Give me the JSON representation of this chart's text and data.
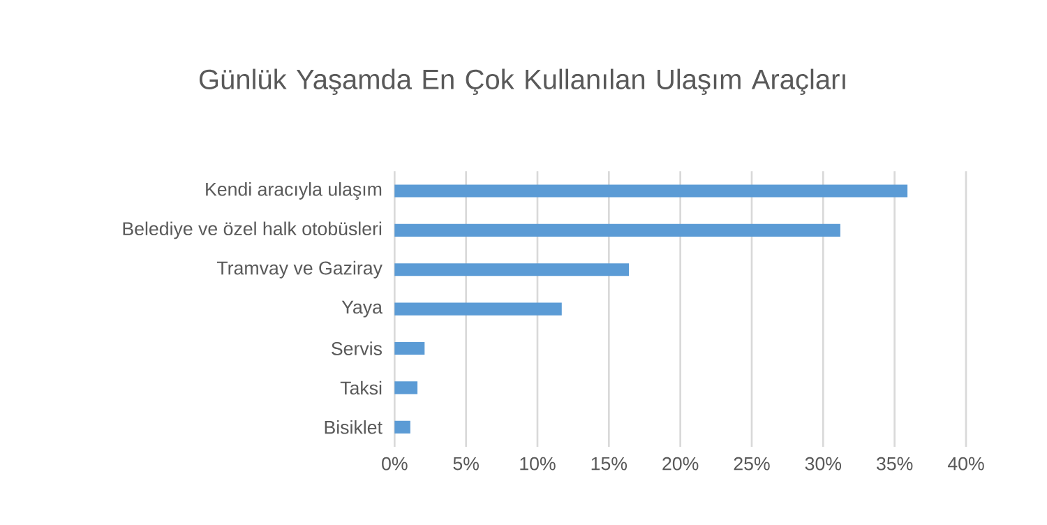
{
  "chart_data": {
    "type": "bar",
    "orientation": "horizontal",
    "title": "Günlük Yaşamda En Çok Kullanılan Ulaşım Araçları",
    "categories": [
      "Kendi aracıyla ulaşım",
      "Belediye ve özel halk otobüsleri",
      "Tramvay ve Gaziray",
      "Yaya",
      "Servis",
      "Taksi",
      "Bisiklet"
    ],
    "values": [
      35.9,
      31.2,
      16.4,
      11.7,
      2.1,
      1.6,
      1.1
    ],
    "color": "#5b9bd5",
    "xlim": [
      0,
      40
    ],
    "xticks": [
      {
        "value": 0,
        "label": "0%"
      },
      {
        "value": 5,
        "label": "5%"
      },
      {
        "value": 10,
        "label": "10%"
      },
      {
        "value": 15,
        "label": "15%"
      },
      {
        "value": 20,
        "label": "20%"
      },
      {
        "value": 25,
        "label": "25%"
      },
      {
        "value": 30,
        "label": "30%"
      },
      {
        "value": 35,
        "label": "35%"
      },
      {
        "value": 40,
        "label": "40%"
      }
    ],
    "grid": "x"
  }
}
